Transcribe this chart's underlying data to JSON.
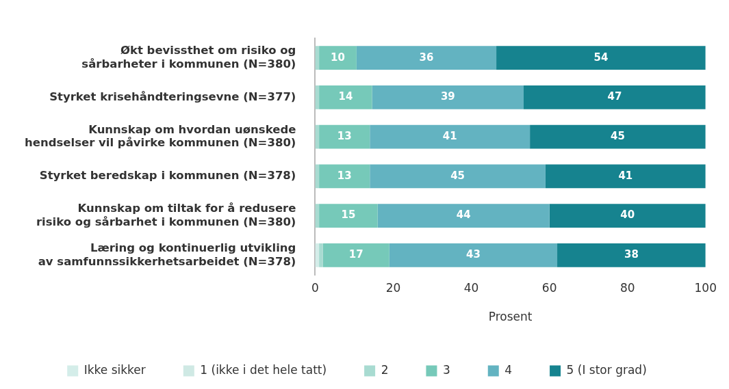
{
  "chart_data": {
    "type": "bar",
    "orientation": "horizontal",
    "stacked": true,
    "categories": [
      "Økt bevissthet om risiko og\nsårbarheter i kommunen (N=380)",
      "Styrket krisehåndteringsevne (N=377)",
      "Kunnskap om hvordan uønskede\nhendselser vil påvirke kommunen (N=380)",
      "Styrket beredskap i kommunen (N=378)",
      "Kunnskap om tiltak for å redusere\nrisiko og sårbarhet i kommunen (N=380)",
      "Læring og kontinuerlig utvikling\nav samfunnssikkerhetsarbeidet (N=378)"
    ],
    "series": [
      {
        "name": "Ikke sikker",
        "color": "#d4ede9",
        "values": [
          0,
          0,
          0,
          0,
          0,
          1
        ]
      },
      {
        "name": "1 (ikke i det hele tatt)",
        "color": "#cfe9e4",
        "values": [
          0,
          0,
          0,
          0,
          0,
          0
        ]
      },
      {
        "name": "2",
        "color": "#a8dbd1",
        "values": [
          1,
          1,
          1,
          1,
          1,
          1
        ]
      },
      {
        "name": "3",
        "color": "#76c9b9",
        "values": [
          9.6,
          13.6,
          13,
          13,
          15,
          17
        ],
        "value_labels": [
          "10",
          "14",
          "13",
          "13",
          "15",
          "17"
        ]
      },
      {
        "name": "4",
        "color": "#63b3c1",
        "values": [
          35.8,
          38.8,
          41,
          45,
          44,
          43
        ],
        "value_labels": [
          "36",
          "39",
          "41",
          "45",
          "44",
          "43"
        ]
      },
      {
        "name": "5 (I stor grad)",
        "color": "#16838f",
        "values": [
          53.6,
          46.6,
          45,
          41,
          40,
          38
        ],
        "value_labels": [
          "54",
          "47",
          "45",
          "41",
          "40",
          "38"
        ]
      }
    ],
    "xlim": [
      0,
      100
    ],
    "xticks": [
      0,
      20,
      40,
      60,
      80,
      100
    ],
    "xlabel": "Prosent",
    "grid": false,
    "legend": "bottom"
  }
}
